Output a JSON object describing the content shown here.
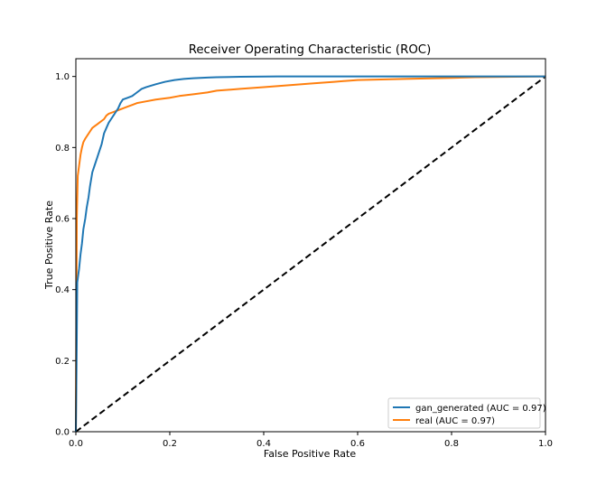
{
  "chart_data": {
    "type": "line",
    "title": "Receiver Operating Characteristic (ROC)",
    "xlabel": "False Positive Rate",
    "ylabel": "True Positive Rate",
    "xlim": [
      0.0,
      1.0
    ],
    "ylim": [
      0.0,
      1.05
    ],
    "x_ticks": [
      "0.0",
      "0.2",
      "0.4",
      "0.6",
      "0.8",
      "1.0"
    ],
    "y_ticks": [
      "0.0",
      "0.2",
      "0.4",
      "0.6",
      "0.8",
      "1.0"
    ],
    "grid": false,
    "legend_position": "lower right",
    "series": [
      {
        "name": "gan_generated (AUC = 0.97)",
        "color": "#1f77b4",
        "x": [
          0.0,
          0.002,
          0.003,
          0.005,
          0.007,
          0.01,
          0.013,
          0.016,
          0.02,
          0.023,
          0.027,
          0.03,
          0.035,
          0.04,
          0.045,
          0.05,
          0.055,
          0.06,
          0.065,
          0.07,
          0.075,
          0.08,
          0.085,
          0.09,
          0.095,
          0.1,
          0.11,
          0.12,
          0.13,
          0.14,
          0.15,
          0.17,
          0.19,
          0.21,
          0.23,
          0.25,
          0.28,
          0.3,
          0.35,
          0.43,
          0.5,
          0.6,
          0.7,
          0.82,
          1.0
        ],
        "y": [
          0.0,
          0.27,
          0.42,
          0.44,
          0.46,
          0.5,
          0.53,
          0.57,
          0.6,
          0.63,
          0.66,
          0.69,
          0.73,
          0.75,
          0.77,
          0.79,
          0.81,
          0.84,
          0.855,
          0.87,
          0.88,
          0.89,
          0.9,
          0.91,
          0.925,
          0.935,
          0.94,
          0.945,
          0.955,
          0.965,
          0.97,
          0.978,
          0.985,
          0.99,
          0.993,
          0.995,
          0.997,
          0.998,
          0.999,
          1.0,
          1.0,
          1.0,
          1.0,
          1.0,
          1.0
        ]
      },
      {
        "name": "real (AUC = 0.97)",
        "color": "#ff7f0e",
        "x": [
          0.0,
          0.002,
          0.004,
          0.006,
          0.008,
          0.01,
          0.013,
          0.016,
          0.02,
          0.025,
          0.03,
          0.035,
          0.04,
          0.045,
          0.05,
          0.06,
          0.065,
          0.07,
          0.08,
          0.09,
          0.1,
          0.11,
          0.12,
          0.13,
          0.15,
          0.17,
          0.2,
          0.22,
          0.25,
          0.28,
          0.3,
          0.35,
          0.4,
          0.45,
          0.5,
          0.55,
          0.6,
          0.7,
          0.8,
          0.85,
          1.0
        ],
        "y": [
          0.0,
          0.6,
          0.72,
          0.74,
          0.76,
          0.78,
          0.8,
          0.815,
          0.825,
          0.835,
          0.845,
          0.855,
          0.86,
          0.865,
          0.87,
          0.88,
          0.89,
          0.895,
          0.9,
          0.905,
          0.91,
          0.915,
          0.92,
          0.925,
          0.93,
          0.935,
          0.94,
          0.945,
          0.95,
          0.955,
          0.96,
          0.965,
          0.97,
          0.975,
          0.98,
          0.985,
          0.99,
          0.993,
          0.996,
          0.998,
          1.0
        ]
      },
      {
        "name": "",
        "color": "#000000",
        "dashed": true,
        "x": [
          0.0,
          1.0
        ],
        "y": [
          0.0,
          1.0
        ]
      }
    ]
  }
}
